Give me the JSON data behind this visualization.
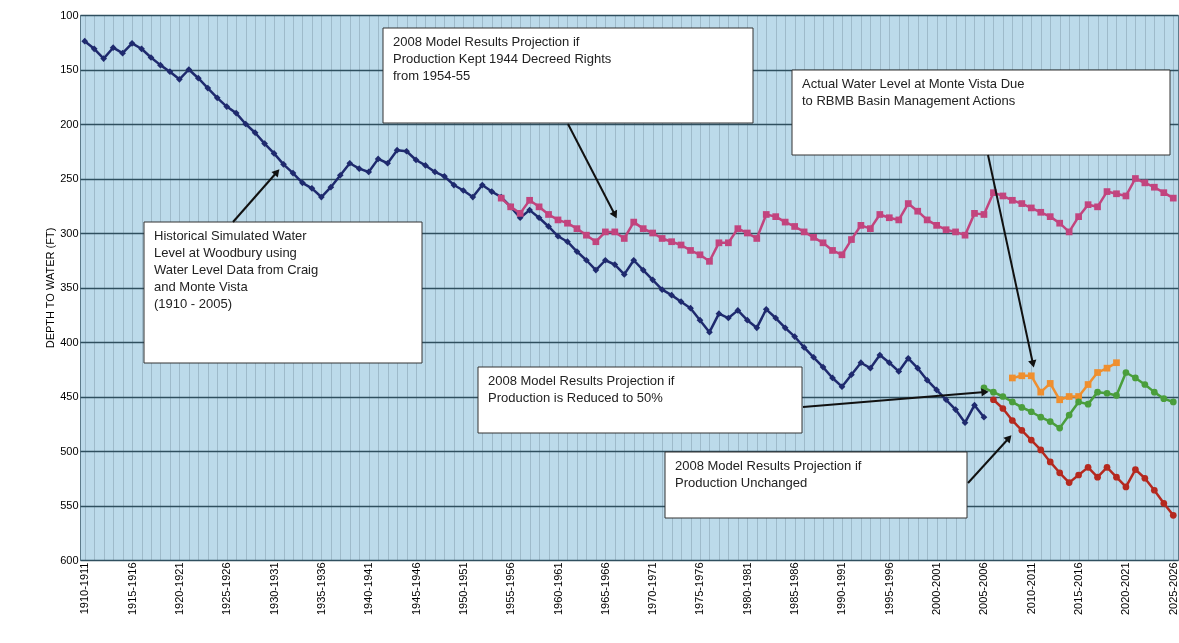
{
  "chart_data": {
    "type": "line",
    "ylabel": "DEPTH TO WATER (FT)",
    "categories": [
      "1910-1911",
      null,
      null,
      null,
      null,
      "1915-1916",
      null,
      null,
      null,
      null,
      "1920-1921",
      null,
      null,
      null,
      null,
      "1925-1926",
      null,
      null,
      null,
      null,
      "1930-1931",
      null,
      null,
      null,
      null,
      "1935-1936",
      null,
      null,
      null,
      null,
      "1940-1941",
      null,
      null,
      null,
      null,
      "1945-1946",
      null,
      null,
      null,
      null,
      "1950-1951",
      null,
      null,
      null,
      null,
      "1955-1956",
      null,
      null,
      null,
      null,
      "1960-1961",
      null,
      null,
      null,
      null,
      "1965-1966",
      null,
      null,
      null,
      null,
      "1970-1971",
      null,
      null,
      null,
      null,
      "1975-1976",
      null,
      null,
      null,
      null,
      "1980-1981",
      null,
      null,
      null,
      null,
      "1985-1986",
      null,
      null,
      null,
      null,
      "1990-1991",
      null,
      null,
      null,
      null,
      "1995-1996",
      null,
      null,
      null,
      null,
      "2000-2001",
      null,
      null,
      null,
      null,
      "2005-2006",
      null,
      null,
      null,
      null,
      "2010-2011",
      null,
      null,
      null,
      null,
      "2015-2016",
      null,
      null,
      null,
      null,
      "2020-2021",
      null,
      null,
      null,
      null,
      "2025-2026"
    ],
    "ylim": [
      600,
      100
    ],
    "yticks": [
      100,
      150,
      200,
      250,
      300,
      350,
      400,
      450,
      500,
      550,
      600
    ],
    "grid": true,
    "line_style": "solid",
    "series": [
      {
        "color": "#1f2a6e",
        "marker": "diamond",
        "values": [
          124,
          131,
          140,
          130,
          135,
          126,
          131,
          139,
          146,
          152,
          159,
          150,
          158,
          167,
          176,
          184,
          190,
          200,
          208,
          218,
          227,
          237,
          245,
          254,
          259,
          267,
          258,
          247,
          236,
          241,
          244,
          232,
          236,
          224,
          225,
          233,
          238,
          244,
          248,
          256,
          261,
          267,
          256,
          262,
          267,
          276,
          286,
          279,
          286,
          294,
          303,
          308,
          317,
          325,
          334,
          325,
          329,
          338,
          325,
          334,
          343,
          352,
          357,
          363,
          369,
          380,
          391,
          374,
          378,
          371,
          380,
          387,
          370,
          378,
          387,
          395,
          405,
          414,
          423,
          433,
          441,
          430,
          419,
          424,
          412,
          419,
          427,
          415,
          424,
          435,
          444,
          453,
          462,
          474,
          458,
          469,
          null,
          null,
          null,
          null,
          null,
          null,
          null,
          null,
          null,
          null,
          null,
          null,
          null,
          null,
          null,
          null,
          null,
          null,
          null,
          null
        ]
      },
      {
        "color": "#c2447e",
        "marker": "square",
        "values": [
          null,
          null,
          null,
          null,
          null,
          null,
          null,
          null,
          null,
          null,
          null,
          null,
          null,
          null,
          null,
          null,
          null,
          null,
          null,
          null,
          null,
          null,
          null,
          null,
          null,
          null,
          null,
          null,
          null,
          null,
          null,
          null,
          null,
          null,
          null,
          null,
          null,
          null,
          null,
          null,
          null,
          null,
          null,
          null,
          268,
          276,
          282,
          270,
          276,
          283,
          288,
          291,
          296,
          302,
          308,
          299,
          299,
          305,
          290,
          296,
          300,
          305,
          308,
          311,
          316,
          320,
          326,
          309,
          309,
          296,
          300,
          305,
          283,
          285,
          290,
          294,
          299,
          304,
          309,
          316,
          320,
          306,
          293,
          296,
          283,
          286,
          288,
          273,
          280,
          288,
          293,
          297,
          299,
          302,
          282,
          283,
          263,
          266,
          270,
          273,
          277,
          281,
          285,
          291,
          299,
          285,
          274,
          276,
          262,
          264,
          266,
          250,
          254,
          258,
          263,
          268
        ]
      },
      {
        "color": "#ef8f2f",
        "marker": "square",
        "values": [
          null,
          null,
          null,
          null,
          null,
          null,
          null,
          null,
          null,
          null,
          null,
          null,
          null,
          null,
          null,
          null,
          null,
          null,
          null,
          null,
          null,
          null,
          null,
          null,
          null,
          null,
          null,
          null,
          null,
          null,
          null,
          null,
          null,
          null,
          null,
          null,
          null,
          null,
          null,
          null,
          null,
          null,
          null,
          null,
          null,
          null,
          null,
          null,
          null,
          null,
          null,
          null,
          null,
          null,
          null,
          null,
          null,
          null,
          null,
          null,
          null,
          null,
          null,
          null,
          null,
          null,
          null,
          null,
          null,
          null,
          null,
          null,
          null,
          null,
          null,
          null,
          null,
          null,
          null,
          null,
          null,
          null,
          null,
          null,
          null,
          null,
          null,
          null,
          null,
          null,
          null,
          null,
          null,
          null,
          null,
          null,
          null,
          null,
          433,
          431,
          431,
          446,
          438,
          453,
          450,
          450,
          439,
          428,
          424,
          419,
          null,
          null,
          null,
          null,
          null,
          null
        ]
      },
      {
        "color": "#4a9e3c",
        "marker": "circle",
        "values": [
          null,
          null,
          null,
          null,
          null,
          null,
          null,
          null,
          null,
          null,
          null,
          null,
          null,
          null,
          null,
          null,
          null,
          null,
          null,
          null,
          null,
          null,
          null,
          null,
          null,
          null,
          null,
          null,
          null,
          null,
          null,
          null,
          null,
          null,
          null,
          null,
          null,
          null,
          null,
          null,
          null,
          null,
          null,
          null,
          null,
          null,
          null,
          null,
          null,
          null,
          null,
          null,
          null,
          null,
          null,
          null,
          null,
          null,
          null,
          null,
          null,
          null,
          null,
          null,
          null,
          null,
          null,
          null,
          null,
          null,
          null,
          null,
          null,
          null,
          null,
          null,
          null,
          null,
          null,
          null,
          null,
          null,
          null,
          null,
          null,
          null,
          null,
          null,
          null,
          null,
          null,
          null,
          null,
          null,
          null,
          442,
          446,
          450,
          455,
          460,
          464,
          469,
          473,
          479,
          467,
          455,
          457,
          446,
          447,
          449,
          428,
          433,
          439,
          446,
          452,
          455
        ]
      },
      {
        "color": "#b5291f",
        "marker": "circle",
        "values": [
          null,
          null,
          null,
          null,
          null,
          null,
          null,
          null,
          null,
          null,
          null,
          null,
          null,
          null,
          null,
          null,
          null,
          null,
          null,
          null,
          null,
          null,
          null,
          null,
          null,
          null,
          null,
          null,
          null,
          null,
          null,
          null,
          null,
          null,
          null,
          null,
          null,
          null,
          null,
          null,
          null,
          null,
          null,
          null,
          null,
          null,
          null,
          null,
          null,
          null,
          null,
          null,
          null,
          null,
          null,
          null,
          null,
          null,
          null,
          null,
          null,
          null,
          null,
          null,
          null,
          null,
          null,
          null,
          null,
          null,
          null,
          null,
          null,
          null,
          null,
          null,
          null,
          null,
          null,
          null,
          null,
          null,
          null,
          null,
          null,
          null,
          null,
          null,
          null,
          null,
          null,
          null,
          null,
          null,
          null,
          null,
          453,
          461,
          472,
          481,
          490,
          499,
          510,
          520,
          529,
          522,
          515,
          524,
          515,
          524,
          533,
          517,
          525,
          536,
          548,
          559
        ]
      }
    ],
    "annotations": [
      "Historical Simulated Water\nLevel at Woodbury using\nWater Level Data from Craig\nand Monte Vista\n(1910 - 2005)",
      "2008 Model Results Projection if\nProduction Kept 1944 Decreed Rights\nfrom 1954-55",
      "Actual Water Level at Monte Vista Due\nto RBMB Basin Management Actions",
      "2008 Model Results Projection if\nProduction is Reduced to 50%",
      "2008 Model Results Projection if\nProduction Unchanged"
    ]
  }
}
